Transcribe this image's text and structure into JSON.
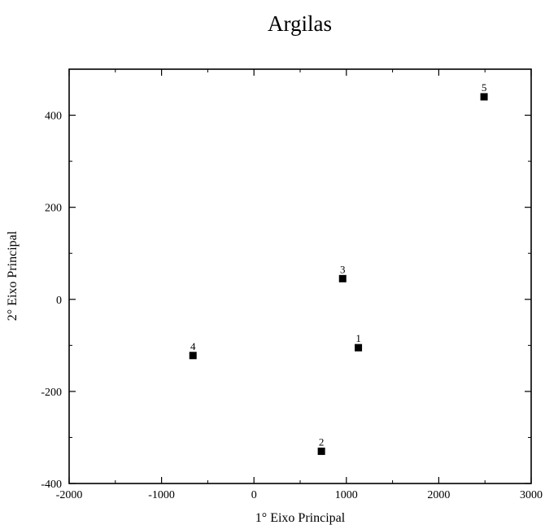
{
  "chart_data": {
    "type": "scatter",
    "title": "Argilas",
    "xlabel": "1° Eixo Principal",
    "ylabel": "2° Eixo Principal",
    "xlim": [
      -2000,
      3000
    ],
    "ylim": [
      -400,
      500
    ],
    "xticks": [
      -2000,
      -1000,
      0,
      1000,
      2000,
      3000
    ],
    "yticks": [
      -400,
      -200,
      0,
      200,
      400
    ],
    "xtick_labels": [
      "-2000",
      "-1000",
      "0",
      "1000",
      "2000",
      "3000"
    ],
    "ytick_labels": [
      "-400",
      "-200",
      "0",
      "200",
      "400"
    ],
    "grid": false,
    "marker": "square",
    "points": [
      {
        "label": "1",
        "x": 1130,
        "y": -105
      },
      {
        "label": "2",
        "x": 730,
        "y": -330
      },
      {
        "label": "3",
        "x": 960,
        "y": 45
      },
      {
        "label": "4",
        "x": -660,
        "y": -122
      },
      {
        "label": "5",
        "x": 2490,
        "y": 440
      }
    ]
  }
}
